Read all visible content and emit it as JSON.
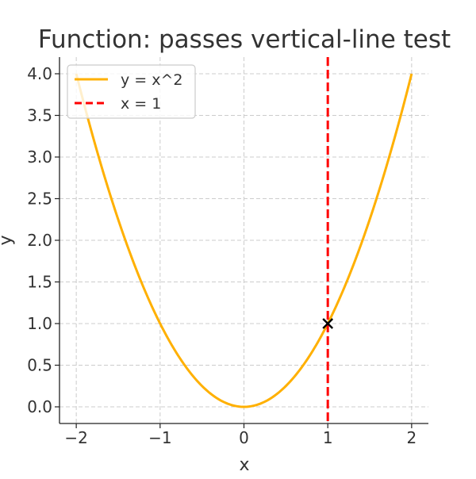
{
  "chart_data": {
    "type": "line",
    "title": "Function: passes vertical-line test",
    "xlabel": "x",
    "ylabel": "y",
    "xlim": [
      -2.2,
      2.2
    ],
    "ylim": [
      -0.2,
      4.2
    ],
    "xticks": [
      -2,
      -1,
      0,
      1,
      2
    ],
    "xtick_labels": [
      "−2",
      "−1",
      "0",
      "1",
      "2"
    ],
    "yticks": [
      0,
      0.5,
      1,
      1.5,
      2,
      2.5,
      3,
      3.5,
      4
    ],
    "ytick_labels": [
      "0.0",
      "0.5",
      "1.0",
      "1.5",
      "2.0",
      "2.5",
      "3.0",
      "3.5",
      "4.0"
    ],
    "grid": true,
    "legend_position": "top-left",
    "series": [
      {
        "name": "y = x^2",
        "function": "x^2",
        "x_range": [
          -2,
          2
        ],
        "color": "#ffb000",
        "style": "solid"
      },
      {
        "name": "x = 1",
        "vertical_line_x": 1,
        "color": "#ff0000",
        "style": "dashed"
      }
    ],
    "markers": [
      {
        "x": 1,
        "y": 1,
        "symbol": "x",
        "color": "#000000"
      }
    ]
  }
}
